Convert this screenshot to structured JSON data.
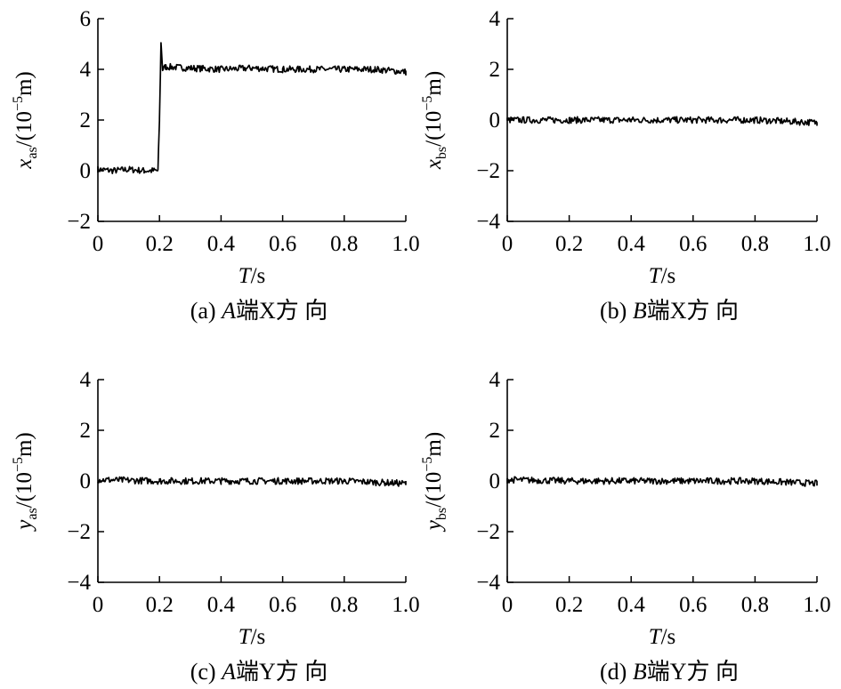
{
  "chart_data": [
    {
      "id": "a",
      "type": "line",
      "caption_prefix": "(a) ",
      "caption_end": "A",
      "caption_dir": "端X方 向",
      "x_label": {
        "var": "T",
        "unit": "/s"
      },
      "y_label": {
        "var": "x",
        "sub": "as",
        "unit_pre": "/(10",
        "sup": "−5",
        "unit_post": "m)"
      },
      "x_ticks": [
        "0",
        "0.2",
        "0.4",
        "0.6",
        "0.8",
        "1.0"
      ],
      "y_ticks": [
        "−2",
        "0",
        "2",
        "4",
        "6"
      ],
      "xlim": [
        0,
        1.0
      ],
      "ylim": [
        -2,
        6
      ],
      "series": [
        {
          "x": [
            0,
            0.05,
            0.1,
            0.15,
            0.195,
            0.2,
            0.205,
            0.21,
            0.22,
            0.3,
            0.4,
            0.5,
            0.6,
            0.7,
            0.8,
            0.9,
            1.0
          ],
          "y": [
            0.05,
            0.0,
            0.05,
            0.0,
            0.0,
            2.0,
            5.05,
            4.0,
            4.1,
            4.05,
            4.0,
            4.05,
            4.0,
            4.0,
            4.0,
            4.0,
            3.9
          ]
        }
      ]
    },
    {
      "id": "b",
      "type": "line",
      "caption_prefix": "(b) ",
      "caption_end": "B",
      "caption_dir": "端X方 向",
      "x_label": {
        "var": "T",
        "unit": "/s"
      },
      "y_label": {
        "var": "x",
        "sub": "bs",
        "unit_pre": "/(10",
        "sup": "−5",
        "unit_post": "m)"
      },
      "x_ticks": [
        "0",
        "0.2",
        "0.4",
        "0.6",
        "0.8",
        "1.0"
      ],
      "y_ticks": [
        "−4",
        "−2",
        "0",
        "2",
        "4"
      ],
      "xlim": [
        0,
        1.0
      ],
      "ylim": [
        -4,
        4
      ],
      "series": [
        {
          "x": [
            0,
            0.2,
            0.4,
            0.6,
            0.8,
            1.0
          ],
          "y": [
            0.0,
            0.0,
            0.0,
            0.0,
            0.0,
            -0.1
          ]
        }
      ]
    },
    {
      "id": "c",
      "type": "line",
      "caption_prefix": "(c) ",
      "caption_end": "A",
      "caption_dir": "端Y方 向",
      "x_label": {
        "var": "T",
        "unit": "/s"
      },
      "y_label": {
        "var": "y",
        "sub": "as",
        "unit_pre": "/(10",
        "sup": "−5",
        "unit_post": "m)"
      },
      "x_ticks": [
        "0",
        "0.2",
        "0.4",
        "0.6",
        "0.8",
        "1.0"
      ],
      "y_ticks": [
        "−4",
        "−2",
        "0",
        "2",
        "4"
      ],
      "xlim": [
        0,
        1.0
      ],
      "ylim": [
        -4,
        4
      ],
      "series": [
        {
          "x": [
            0,
            0.2,
            0.4,
            0.6,
            0.8,
            1.0
          ],
          "y": [
            0.05,
            0.0,
            0.0,
            0.0,
            0.0,
            -0.1
          ]
        }
      ]
    },
    {
      "id": "d",
      "type": "line",
      "caption_prefix": "(d) ",
      "caption_end": "B",
      "caption_dir": "端Y方 向",
      "x_label": {
        "var": "T",
        "unit": "/s"
      },
      "y_label": {
        "var": "y",
        "sub": "bs",
        "unit_pre": "/(10",
        "sup": "−5",
        "unit_post": "m)"
      },
      "x_ticks": [
        "0",
        "0.2",
        "0.4",
        "0.6",
        "0.8",
        "1.0"
      ],
      "y_ticks": [
        "−4",
        "−2",
        "0",
        "2",
        "4"
      ],
      "xlim": [
        0,
        1.0
      ],
      "ylim": [
        -4,
        4
      ],
      "series": [
        {
          "x": [
            0,
            0.2,
            0.4,
            0.6,
            0.8,
            1.0
          ],
          "y": [
            0.05,
            0.0,
            0.0,
            0.0,
            0.0,
            -0.1
          ]
        }
      ]
    }
  ]
}
